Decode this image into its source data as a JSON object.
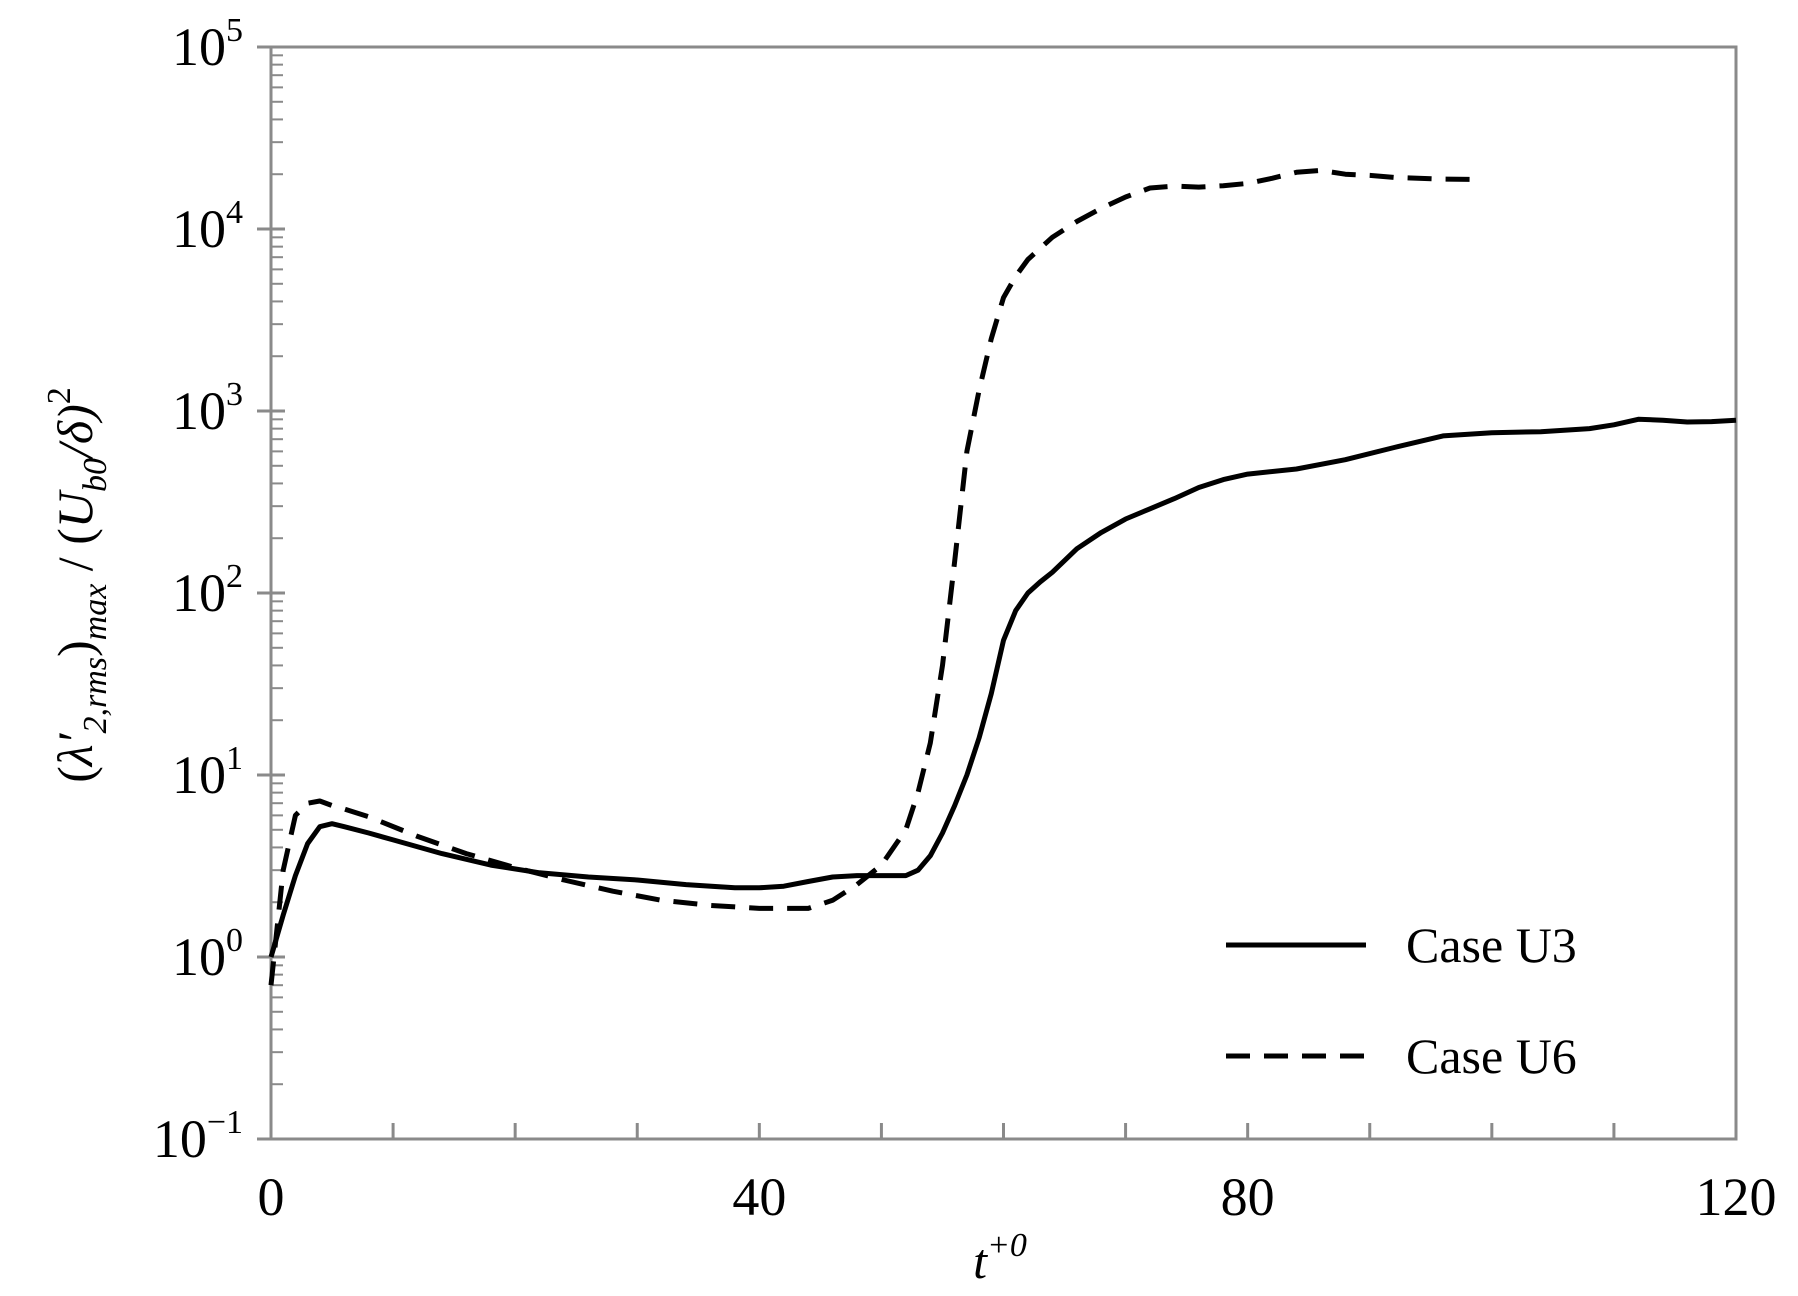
{
  "chart_data": {
    "type": "line",
    "xlabel": {
      "base": "t",
      "sup": "+0"
    },
    "ylabel": {
      "open": "(",
      "lambda": "λ′",
      "sub1": "2,rms",
      "mid": ")",
      "sub2": "max",
      "sep": " / (",
      "u": "U",
      "sub3": "b0",
      "tail": "/δ)",
      "sup": "2"
    },
    "xlim": [
      0,
      120
    ],
    "ylim": [
      0.1,
      100000
    ],
    "yscale": "log",
    "grid": false,
    "legend_position": "lower-right",
    "x_ticks": [
      {
        "value": 0,
        "label": "0"
      },
      {
        "value": 40,
        "label": "40"
      },
      {
        "value": 80,
        "label": "80"
      },
      {
        "value": 120,
        "label": "120"
      }
    ],
    "y_ticks": [
      {
        "value": 0.1,
        "base": "10",
        "exp": "−1"
      },
      {
        "value": 1,
        "base": "10",
        "exp": "0"
      },
      {
        "value": 10,
        "base": "10",
        "exp": "1"
      },
      {
        "value": 100,
        "base": "10",
        "exp": "2"
      },
      {
        "value": 1000,
        "base": "10",
        "exp": "3"
      },
      {
        "value": 10000,
        "base": "10",
        "exp": "4"
      },
      {
        "value": 100000,
        "base": "10",
        "exp": "5"
      }
    ],
    "series": [
      {
        "name": "Case U3",
        "style": "solid",
        "color": "#000000",
        "x": [
          0,
          1,
          2,
          3,
          4,
          5,
          6,
          8,
          10,
          14,
          18,
          22,
          26,
          30,
          34,
          38,
          40,
          42,
          44,
          46,
          48,
          50,
          52,
          53,
          54,
          55,
          56,
          57,
          58,
          59,
          60,
          61,
          62,
          63,
          64,
          66,
          68,
          70,
          72,
          74,
          76,
          78,
          80,
          84,
          88,
          92,
          96,
          100,
          104,
          108,
          110,
          112,
          114,
          116,
          118,
          120
        ],
        "y": [
          1.0,
          1.7,
          2.8,
          4.2,
          5.2,
          5.4,
          5.2,
          4.8,
          4.4,
          3.7,
          3.2,
          2.9,
          2.75,
          2.65,
          2.5,
          2.4,
          2.4,
          2.45,
          2.6,
          2.75,
          2.8,
          2.8,
          2.8,
          3.0,
          3.6,
          4.8,
          6.8,
          10,
          16,
          28,
          55,
          80,
          100,
          115,
          130,
          175,
          215,
          255,
          290,
          330,
          380,
          420,
          450,
          480,
          540,
          630,
          730,
          760,
          770,
          800,
          840,
          900,
          890,
          870,
          875,
          890
        ]
      },
      {
        "name": "Case U6",
        "style": "dashed",
        "color": "#000000",
        "x": [
          0,
          1,
          2,
          3,
          4,
          5,
          6,
          8,
          12,
          16,
          20,
          24,
          28,
          32,
          36,
          40,
          44,
          46,
          48,
          50,
          52,
          53,
          54,
          55,
          56,
          57,
          58,
          59,
          60,
          61,
          62,
          64,
          66,
          68,
          70,
          72,
          74,
          76,
          78,
          80,
          82,
          84,
          86,
          88,
          90,
          92,
          96,
          99
        ],
        "y": [
          0.7,
          3.0,
          6.0,
          7.0,
          7.2,
          6.8,
          6.5,
          5.9,
          4.6,
          3.7,
          3.1,
          2.65,
          2.3,
          2.05,
          1.92,
          1.85,
          1.85,
          2.05,
          2.5,
          3.2,
          5.0,
          8.0,
          15,
          40,
          150,
          600,
          1300,
          2500,
          4200,
          5500,
          6800,
          9000,
          11000,
          13000,
          15000,
          16800,
          17200,
          17000,
          17300,
          17800,
          19000,
          20500,
          21000,
          20000,
          19700,
          19200,
          18800,
          18700
        ]
      }
    ]
  }
}
